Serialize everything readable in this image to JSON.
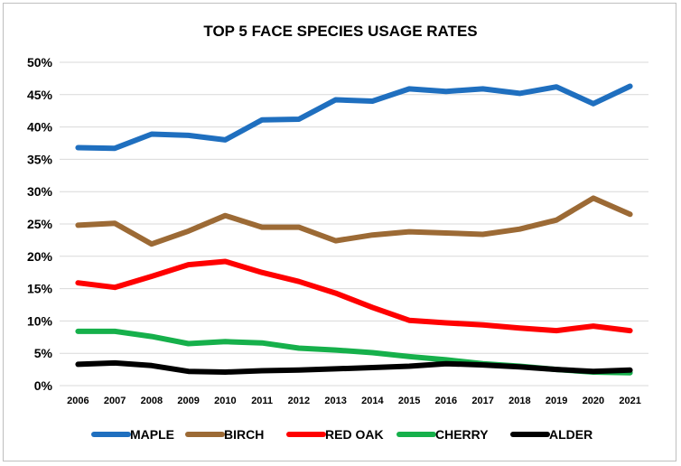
{
  "chart_data": {
    "type": "line",
    "title": "TOP 5 FACE SPECIES USAGE RATES",
    "xlabel": "",
    "ylabel": "",
    "x": [
      "2006",
      "2007",
      "2008",
      "2009",
      "2010",
      "2011",
      "2012",
      "2013",
      "2014",
      "2015",
      "2016",
      "2017",
      "2018",
      "2019",
      "2020",
      "2021"
    ],
    "ylim": [
      0,
      50
    ],
    "yticks": [
      0,
      5,
      10,
      15,
      20,
      25,
      30,
      35,
      40,
      45,
      50
    ],
    "ytick_labels": [
      "0%",
      "5%",
      "10%",
      "15%",
      "20%",
      "25%",
      "30%",
      "35%",
      "40%",
      "45%",
      "50%"
    ],
    "grid": "horizontal",
    "legend_position": "bottom",
    "series": [
      {
        "name": "MAPLE",
        "color": "#1f6fbf",
        "values": [
          36.8,
          36.7,
          38.9,
          38.7,
          38.0,
          41.1,
          41.2,
          44.2,
          44.0,
          45.9,
          45.5,
          45.9,
          45.2,
          46.2,
          43.6,
          46.3
        ]
      },
      {
        "name": "BIRCH",
        "color": "#9c6a35",
        "values": [
          24.8,
          25.1,
          21.9,
          23.9,
          26.3,
          24.5,
          24.5,
          22.4,
          23.3,
          23.8,
          23.6,
          23.4,
          24.2,
          25.6,
          29.0,
          26.5
        ]
      },
      {
        "name": "RED OAK",
        "color": "#ff0000",
        "values": [
          15.9,
          15.2,
          16.9,
          18.7,
          19.2,
          17.5,
          16.1,
          14.3,
          12.1,
          10.1,
          9.7,
          9.4,
          8.9,
          8.5,
          9.2,
          8.5
        ]
      },
      {
        "name": "CHERRY",
        "color": "#16b04b",
        "values": [
          8.4,
          8.4,
          7.6,
          6.5,
          6.8,
          6.6,
          5.8,
          5.5,
          5.1,
          4.5,
          4.0,
          3.4,
          3.0,
          2.5,
          2.1,
          2.0
        ]
      },
      {
        "name": "ALDER",
        "color": "#000000",
        "values": [
          3.3,
          3.5,
          3.1,
          2.2,
          2.1,
          2.3,
          2.4,
          2.6,
          2.8,
          3.0,
          3.4,
          3.2,
          2.9,
          2.5,
          2.2,
          2.4
        ]
      }
    ]
  }
}
